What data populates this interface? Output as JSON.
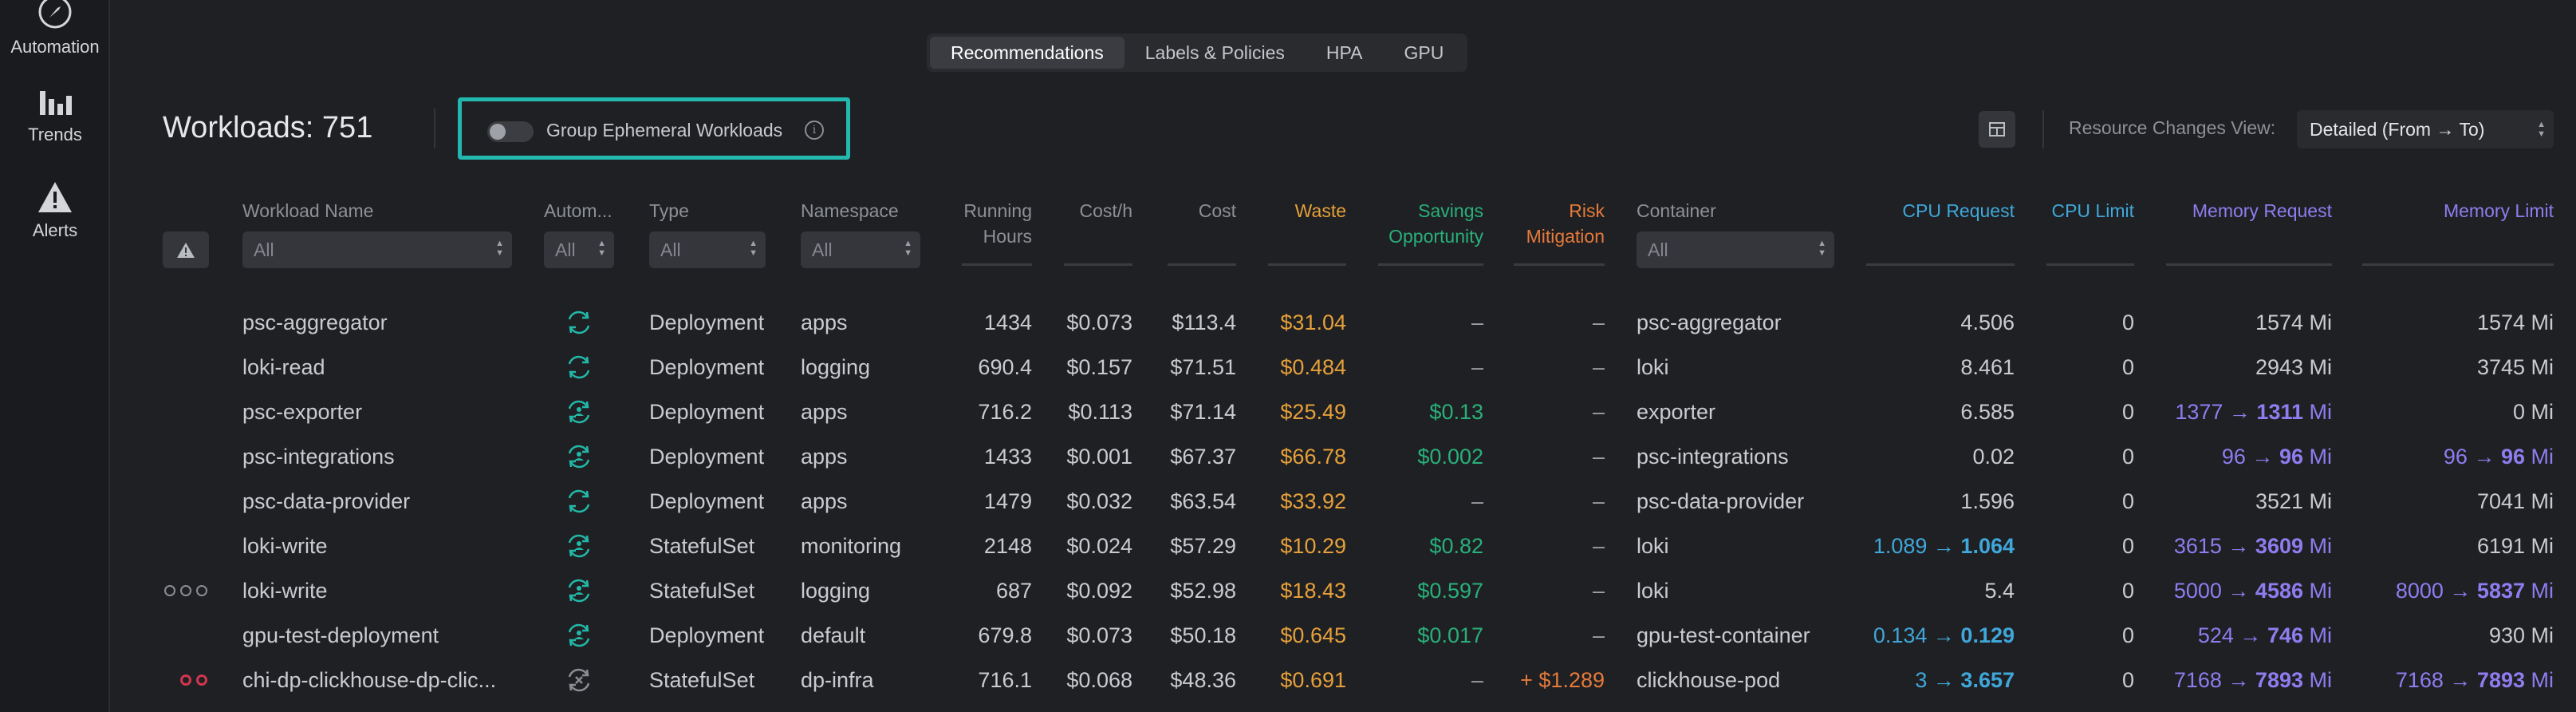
{
  "sidebar": {
    "items": [
      {
        "label": "Automation",
        "icon": "compass-icon"
      },
      {
        "label": "Trends",
        "icon": "bar-chart-icon"
      },
      {
        "label": "Alerts",
        "icon": "warning-icon"
      }
    ]
  },
  "tabs": [
    {
      "label": "Recommendations",
      "active": true
    },
    {
      "label": "Labels & Policies",
      "active": false
    },
    {
      "label": "HPA",
      "active": false
    },
    {
      "label": "GPU",
      "active": false
    }
  ],
  "toolbar": {
    "title": "Workloads: 751",
    "group_toggle_label": "Group Ephemeral Workloads",
    "group_toggle_on": false,
    "resource_view_label": "Resource Changes View:",
    "resource_view_value": "Detailed (From → To)"
  },
  "columns": {
    "workload_name": "Workload Name",
    "automation": "Autom...",
    "type": "Type",
    "namespace": "Namespace",
    "running_hours_1": "Running",
    "running_hours_2": "Hours",
    "cost_h": "Cost/h",
    "cost": "Cost",
    "waste": "Waste",
    "savings_1": "Savings",
    "savings_2": "Opportunity",
    "risk_1": "Risk",
    "risk_2": "Mitigation",
    "container": "Container",
    "cpu_request": "CPU Request",
    "cpu_limit": "CPU Limit",
    "memory_request": "Memory Request",
    "memory_limit": "Memory Limit"
  },
  "filters": {
    "workload_name": "All",
    "automation": "All",
    "type": "All",
    "namespace": "All",
    "container": "All"
  },
  "colors": {
    "accent_teal": "#22b8b0",
    "waste": "#e6a03a",
    "savings": "#29b07a",
    "risk": "#e67a3a",
    "cpu": "#3fa7da",
    "memory": "#8f7cf0",
    "issue_dot": "#d0364f"
  },
  "rows": [
    {
      "indicator": "",
      "name": "psc-aggregator",
      "auto_icon": "refresh-icon",
      "type": "Deployment",
      "namespace": "apps",
      "hours": "1434",
      "cost_h": "$0.073",
      "cost": "$113.4",
      "waste": "$31.04",
      "savings": "–",
      "risk": "–",
      "container": "psc-aggregator",
      "cpu_req": {
        "from": "4.506",
        "to": ""
      },
      "cpu_limit": "0",
      "mem_req": {
        "from": "1574 Mi",
        "to": "",
        "unit": ""
      },
      "mem_limit": {
        "from": "1574 Mi",
        "to": "",
        "unit": ""
      }
    },
    {
      "indicator": "",
      "name": "loki-read",
      "auto_icon": "refresh-icon",
      "type": "Deployment",
      "namespace": "logging",
      "hours": "690.4",
      "cost_h": "$0.157",
      "cost": "$71.51",
      "waste": "$0.484",
      "savings": "–",
      "risk": "–",
      "container": "loki",
      "cpu_req": {
        "from": "8.461",
        "to": ""
      },
      "cpu_limit": "0",
      "mem_req": {
        "from": "2943 Mi",
        "to": "",
        "unit": ""
      },
      "mem_limit": {
        "from": "3745 Mi",
        "to": "",
        "unit": ""
      }
    },
    {
      "indicator": "",
      "name": "psc-exporter",
      "auto_icon": "refresh-user-icon",
      "type": "Deployment",
      "namespace": "apps",
      "hours": "716.2",
      "cost_h": "$0.113",
      "cost": "$71.14",
      "waste": "$25.49",
      "savings": "$0.13",
      "risk": "–",
      "container": "exporter",
      "cpu_req": {
        "from": "6.585",
        "to": ""
      },
      "cpu_limit": "0",
      "mem_req": {
        "from": "1377 → ",
        "to": "1311",
        "unit": " Mi"
      },
      "mem_limit": {
        "from": "0 Mi",
        "to": "",
        "unit": ""
      }
    },
    {
      "indicator": "",
      "name": "psc-integrations",
      "auto_icon": "refresh-user-icon",
      "type": "Deployment",
      "namespace": "apps",
      "hours": "1433",
      "cost_h": "$0.001",
      "cost": "$67.37",
      "waste": "$66.78",
      "savings": "$0.002",
      "risk": "–",
      "container": "psc-integrations",
      "cpu_req": {
        "from": "0.02",
        "to": ""
      },
      "cpu_limit": "0",
      "mem_req": {
        "from": "96 → ",
        "to": "96",
        "unit": " Mi"
      },
      "mem_limit": {
        "from": "96 → ",
        "to": "96",
        "unit": " Mi"
      }
    },
    {
      "indicator": "",
      "name": "psc-data-provider",
      "auto_icon": "refresh-icon",
      "type": "Deployment",
      "namespace": "apps",
      "hours": "1479",
      "cost_h": "$0.032",
      "cost": "$63.54",
      "waste": "$33.92",
      "savings": "–",
      "risk": "–",
      "container": "psc-data-provider",
      "cpu_req": {
        "from": "1.596",
        "to": ""
      },
      "cpu_limit": "0",
      "mem_req": {
        "from": "3521 Mi",
        "to": "",
        "unit": ""
      },
      "mem_limit": {
        "from": "7041 Mi",
        "to": "",
        "unit": ""
      }
    },
    {
      "indicator": "",
      "name": "loki-write",
      "auto_icon": "refresh-user-icon",
      "type": "StatefulSet",
      "namespace": "monitoring",
      "hours": "2148",
      "cost_h": "$0.024",
      "cost": "$57.29",
      "waste": "$10.29",
      "savings": "$0.82",
      "risk": "–",
      "container": "loki",
      "cpu_req": {
        "from": "1.089 → ",
        "to": "1.064"
      },
      "cpu_limit": "0",
      "mem_req": {
        "from": "3615 → ",
        "to": "3609",
        "unit": " Mi"
      },
      "mem_limit": {
        "from": "6191 Mi",
        "to": "",
        "unit": ""
      }
    },
    {
      "indicator": "ooo",
      "name": "loki-write",
      "auto_icon": "refresh-user-icon",
      "type": "StatefulSet",
      "namespace": "logging",
      "hours": "687",
      "cost_h": "$0.092",
      "cost": "$52.98",
      "waste": "$18.43",
      "savings": "$0.597",
      "risk": "–",
      "container": "loki",
      "cpu_req": {
        "from": "5.4",
        "to": ""
      },
      "cpu_limit": "0",
      "mem_req": {
        "from": "5000 → ",
        "to": "4586",
        "unit": " Mi"
      },
      "mem_limit": {
        "from": "8000 → ",
        "to": "5837",
        "unit": " Mi"
      }
    },
    {
      "indicator": "",
      "name": "gpu-test-deployment",
      "auto_icon": "refresh-user-icon",
      "type": "Deployment",
      "namespace": "default",
      "hours": "679.8",
      "cost_h": "$0.073",
      "cost": "$50.18",
      "waste": "$0.645",
      "savings": "$0.017",
      "risk": "–",
      "container": "gpu-test-container",
      "cpu_req": {
        "from": "0.134 → ",
        "to": "0.129"
      },
      "cpu_limit": "0",
      "mem_req": {
        "from": "524 → ",
        "to": "746",
        "unit": " Mi"
      },
      "mem_limit": {
        "from": "930 Mi",
        "to": "",
        "unit": ""
      }
    },
    {
      "indicator": "oo-red",
      "name": "chi-dp-clickhouse-dp-clic...",
      "auto_icon": "refresh-x-icon",
      "type": "StatefulSet",
      "namespace": "dp-infra",
      "hours": "716.1",
      "cost_h": "$0.068",
      "cost": "$48.36",
      "waste": "$0.691",
      "savings": "–",
      "risk": "+ $1.289",
      "container": "clickhouse-pod",
      "cpu_req": {
        "from": "3 → ",
        "to": "3.657"
      },
      "cpu_limit": "0",
      "mem_req": {
        "from": "7168 → ",
        "to": "7893",
        "unit": " Mi"
      },
      "mem_limit": {
        "from": "7168 → ",
        "to": "7893",
        "unit": " Mi"
      }
    }
  ]
}
